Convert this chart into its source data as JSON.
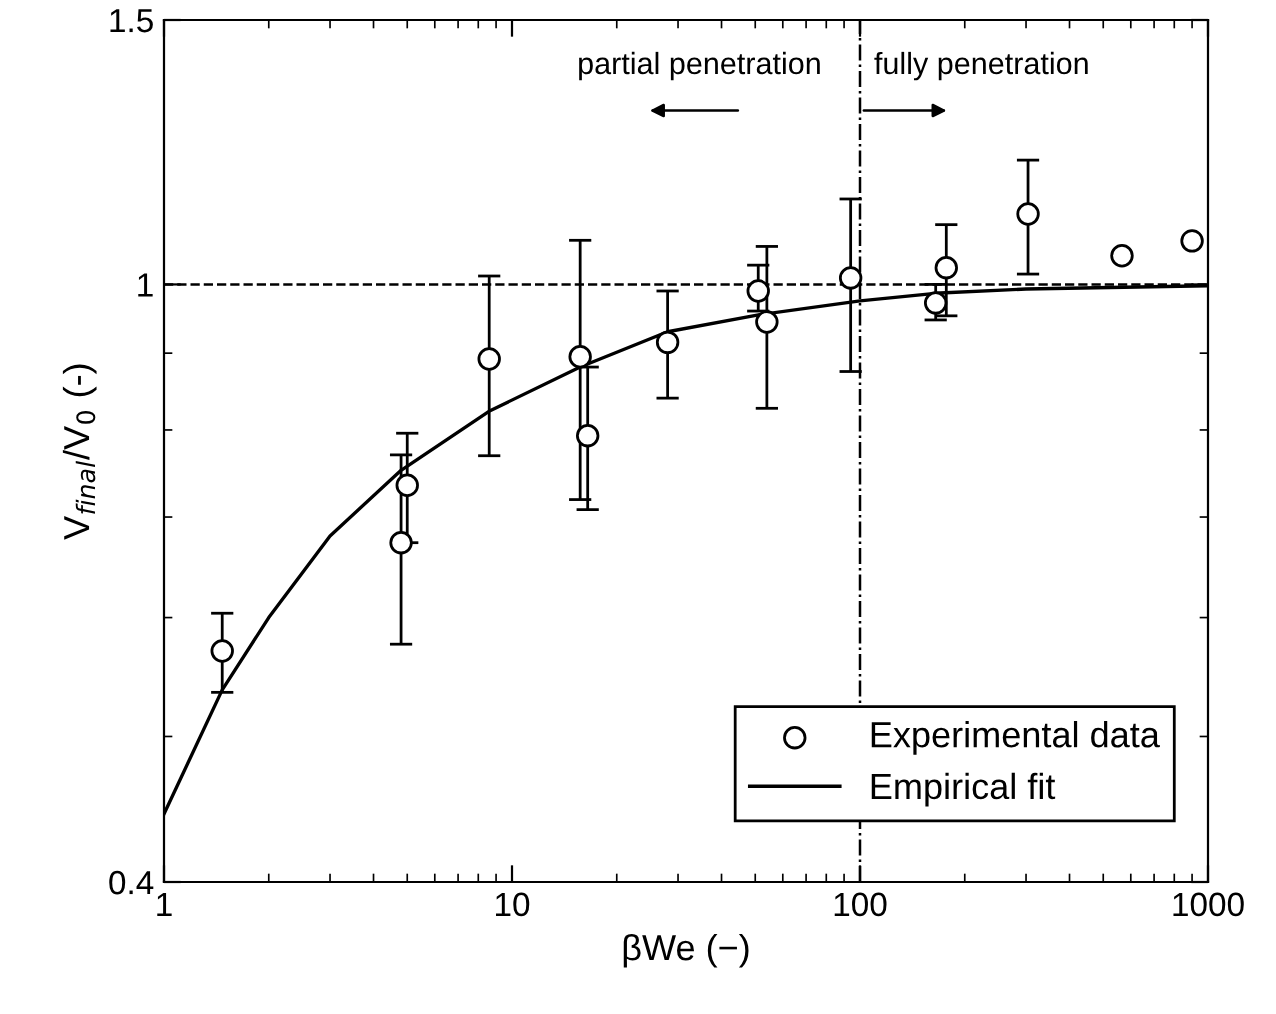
{
  "chart_data": {
    "type": "scatter",
    "xlabel": "βWe (−)",
    "ylabel": "V$_{final}$/V$_{0}$ (-)",
    "log": "xy",
    "xlim": [
      1,
      1000
    ],
    "xticks": [
      1,
      10,
      100,
      1000
    ],
    "ylim": [
      0.4,
      1.5
    ],
    "yticks": [
      0.4,
      1,
      1.5
    ],
    "grid": false,
    "legend": "bottom right",
    "series": [
      {
        "name": "Experimental data",
        "marker": "circle",
        "color": "#000000",
        "x": [
          1.47,
          4.8,
          5.0,
          8.6,
          15.7,
          16.5,
          28,
          51,
          54,
          94,
          165,
          177,
          304,
          566,
          900
        ],
        "values": [
          0.57,
          0.673,
          0.735,
          0.892,
          0.895,
          0.793,
          0.915,
          0.99,
          0.944,
          1.01,
          0.972,
          1.026,
          1.114,
          1.045,
          1.069
        ],
        "errors": [
          [
            0.535,
            0.604
          ],
          [
            0.576,
            0.77
          ],
          [
            0.673,
            0.796
          ],
          [
            0.769,
            1.013
          ],
          [
            0.719,
            1.07
          ],
          [
            0.708,
            0.881
          ],
          [
            0.84,
            0.99
          ],
          [
            0.96,
            1.03
          ],
          [
            0.827,
            1.06
          ],
          [
            0.875,
            1.14
          ],
          [
            0.947,
            1.0
          ],
          [
            0.953,
            1.096
          ],
          [
            1.016,
            1.21
          ],
          null,
          null
        ]
      },
      {
        "name": "Empirical fit",
        "type": "line",
        "marker": "none",
        "line_style": "solid",
        "color": "#000000",
        "x": [
          1,
          1.47,
          2,
          3,
          4.8,
          8.65,
          15.7,
          28,
          52,
          100,
          170,
          300,
          1000
        ],
        "values": [
          0.444,
          0.537,
          0.6,
          0.68,
          0.752,
          0.824,
          0.881,
          0.93,
          0.955,
          0.975,
          0.987,
          0.993,
          0.998
        ]
      }
    ],
    "ref_lines": [
      {
        "axis": "y",
        "value": 1,
        "line_style": "dashed",
        "color": "#000000"
      },
      {
        "axis": "x",
        "value": 100,
        "line_style": "dashdot",
        "color": "#000000"
      }
    ],
    "annotations": [
      "partial penetration",
      "fully penetration"
    ]
  }
}
